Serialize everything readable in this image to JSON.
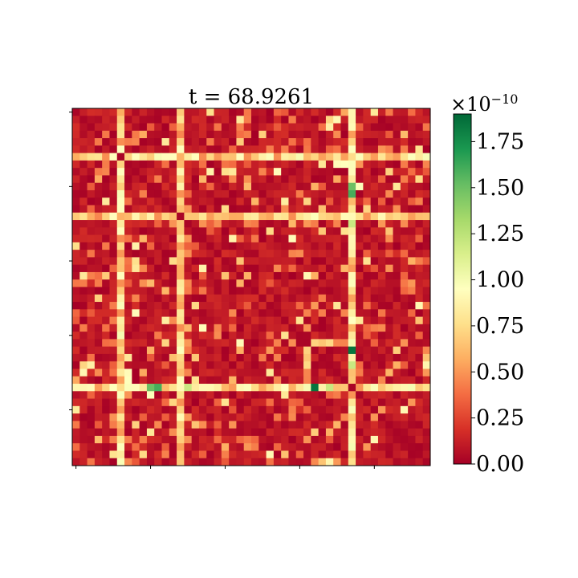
{
  "chart_data": {
    "type": "heatmap",
    "title": "t = 68.9261",
    "n": 48,
    "colormap": "RdYlGn",
    "colorbar": {
      "min": 0.0,
      "max": 1.9,
      "exponent_label": "×10",
      "exponent_power": "−10",
      "ticks": [
        0.0,
        0.25,
        0.5,
        0.75,
        1.0,
        1.25,
        1.5,
        1.75
      ],
      "tick_labels": [
        "0.00",
        "0.25",
        "0.50",
        "0.75",
        "1.00",
        "1.25",
        "1.50",
        "1.75"
      ]
    },
    "bright_rows": [
      6,
      14,
      37
    ],
    "bright_cols": [
      6,
      37
    ],
    "peaks": [
      {
        "row": 10,
        "col": 37,
        "value": 1.4
      },
      {
        "row": 11,
        "col": 37,
        "value": 1.6
      },
      {
        "row": 15,
        "col": 37,
        "value": 1.2
      },
      {
        "row": 32,
        "col": 37,
        "value": 1.9
      },
      {
        "row": 37,
        "col": 10,
        "value": 1.5
      },
      {
        "row": 37,
        "col": 11,
        "value": 1.6
      },
      {
        "row": 37,
        "col": 32,
        "value": 1.85
      },
      {
        "row": 34,
        "col": 37,
        "value": 1.2
      }
    ],
    "grid": false,
    "xlim": [
      0,
      48
    ],
    "ylim": [
      48,
      0
    ],
    "x_tick_labels": [],
    "y_tick_labels": []
  }
}
